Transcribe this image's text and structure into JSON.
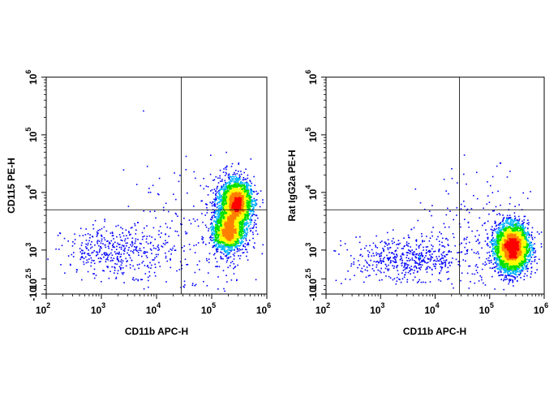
{
  "chart_data": [
    {
      "type": "scatter",
      "name": "left",
      "xlabel": "CD11b APC-H",
      "ylabel": "CD115 PE-H",
      "x_scale": "log",
      "y_scale": "biexponential",
      "xlim": [
        100,
        1000000
      ],
      "ylim": [
        -10,
        1000000
      ],
      "x_ticks": [
        {
          "base": "10",
          "exp": "2",
          "value": 100
        },
        {
          "base": "10",
          "exp": "3",
          "value": 1000
        },
        {
          "base": "10",
          "exp": "4",
          "value": 10000
        },
        {
          "base": "10",
          "exp": "5",
          "value": 100000
        },
        {
          "base": "10",
          "exp": "6",
          "value": 1000000
        }
      ],
      "y_ticks": [
        {
          "base": "-10",
          "exp": "",
          "value": -10
        },
        {
          "base": "10",
          "exp": "2.5",
          "value": 316
        },
        {
          "base": "10",
          "exp": "3",
          "value": 1000
        },
        {
          "base": "10",
          "exp": "4",
          "value": 10000
        },
        {
          "base": "10",
          "exp": "5",
          "value": 100000
        },
        {
          "base": "10",
          "exp": "6",
          "value": 1000000
        }
      ],
      "quadrant_gate": {
        "x": 28000,
        "y": 5000
      },
      "populations": [
        {
          "x_log_center": 5.45,
          "y_log_center": 3.82,
          "x_log_spread": 0.13,
          "y_log_spread": 0.18,
          "count": 2600
        },
        {
          "x_log_center": 5.28,
          "y_log_center": 3.32,
          "x_log_spread": 0.12,
          "y_log_spread": 0.14,
          "count": 1500
        },
        {
          "x_log_center": 5.33,
          "y_log_center": 3.55,
          "x_log_spread": 0.18,
          "y_log_spread": 0.35,
          "count": 1100
        },
        {
          "x_log_center": 3.3,
          "y_log_center": 3.0,
          "x_log_spread": 0.5,
          "y_log_spread": 0.22,
          "count": 420
        },
        {
          "x_log_center": 4.5,
          "y_log_center": 3.3,
          "x_log_spread": 0.6,
          "y_log_spread": 0.7,
          "count": 160
        }
      ]
    },
    {
      "type": "scatter",
      "name": "right",
      "xlabel": "CD11b APC-H",
      "ylabel": "Rat IgG2a PE-H",
      "x_scale": "log",
      "y_scale": "biexponential",
      "xlim": [
        100,
        1000000
      ],
      "ylim": [
        -10,
        1000000
      ],
      "x_ticks": [
        {
          "base": "10",
          "exp": "2",
          "value": 100
        },
        {
          "base": "10",
          "exp": "3",
          "value": 1000
        },
        {
          "base": "10",
          "exp": "4",
          "value": 10000
        },
        {
          "base": "10",
          "exp": "5",
          "value": 100000
        },
        {
          "base": "10",
          "exp": "6",
          "value": 1000000
        }
      ],
      "y_ticks": [
        {
          "base": "-10",
          "exp": "",
          "value": -10
        },
        {
          "base": "10",
          "exp": "2.5",
          "value": 316
        },
        {
          "base": "10",
          "exp": "3",
          "value": 1000
        },
        {
          "base": "10",
          "exp": "4",
          "value": 10000
        },
        {
          "base": "10",
          "exp": "5",
          "value": 100000
        },
        {
          "base": "10",
          "exp": "6",
          "value": 1000000
        }
      ],
      "quadrant_gate": {
        "x": 28000,
        "y": 5000
      },
      "populations": [
        {
          "x_log_center": 5.4,
          "y_log_center": 3.05,
          "x_log_spread": 0.15,
          "y_log_spread": 0.2,
          "count": 4200
        },
        {
          "x_log_center": 3.5,
          "y_log_center": 2.85,
          "x_log_spread": 0.55,
          "y_log_spread": 0.2,
          "count": 520
        },
        {
          "x_log_center": 4.8,
          "y_log_center": 3.3,
          "x_log_spread": 0.55,
          "y_log_spread": 0.55,
          "count": 170
        }
      ]
    }
  ],
  "colors": {
    "axis": "#000000",
    "gate": "#000000",
    "density_low": "#0000ff",
    "density_mid_low": "#00b4ff",
    "density_mid": "#00e000",
    "density_mid_high": "#ffff00",
    "density_high": "#ff8000",
    "density_peak": "#ff0000"
  }
}
